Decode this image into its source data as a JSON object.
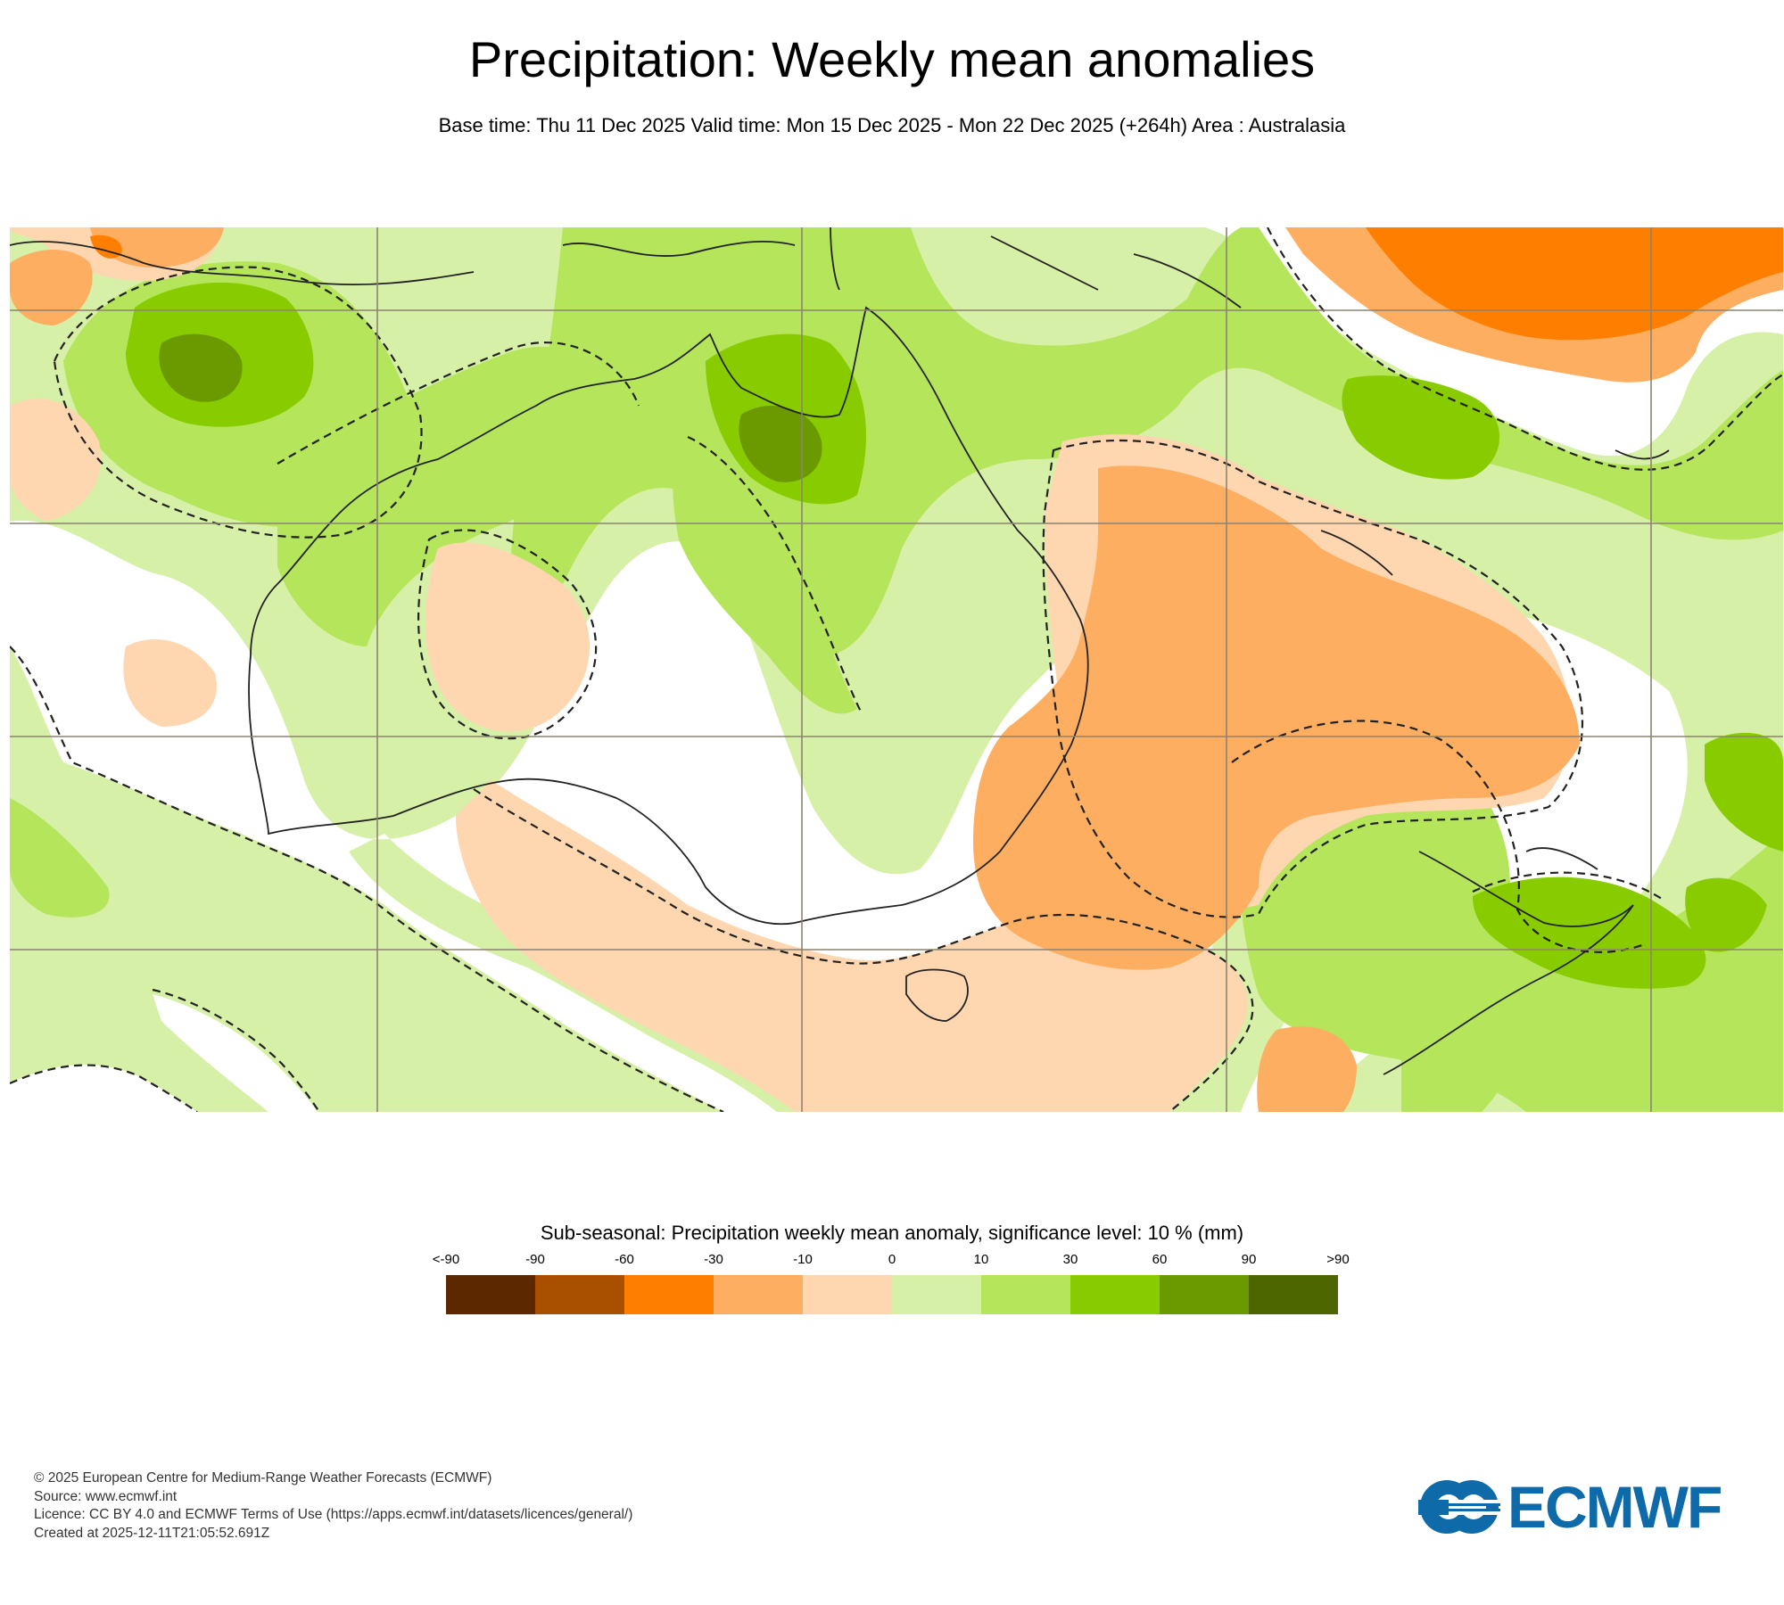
{
  "header": {
    "title": "Precipitation: Weekly mean anomalies",
    "subtitle": "Base time: Thu 11 Dec 2025 Valid time: Mon 15 Dec 2025 - Mon 22 Dec 2025 (+264h) Area : Australasia"
  },
  "legend": {
    "title": "Sub-seasonal: Precipitation weekly mean anomaly, significance level: 10 % (mm)",
    "ticks": [
      "<-90",
      "-90",
      "-60",
      "-30",
      "-10",
      "0",
      "10",
      "30",
      "60",
      "90",
      ">90"
    ],
    "colors": [
      "#5c2800",
      "#a85000",
      "#fe7f00",
      "#feae60",
      "#fed6b0",
      "#d7f0a8",
      "#b4e55a",
      "#88cc00",
      "#6a9900",
      "#4d6600"
    ]
  },
  "map": {
    "area": "Australasia",
    "land_outline_color": "#222222",
    "significance_contour": "dashed",
    "gridline_color": "#8c8370"
  },
  "footer": {
    "lines": [
      "© 2025 European Centre for Medium-Range Weather Forecasts (ECMWF)",
      "Source: www.ecmwf.int",
      "Licence: CC BY 4.0 and ECMWF Terms of Use (https://apps.ecmwf.int/datasets/licences/general/)",
      "Created at 2025-12-11T21:05:52.691Z"
    ]
  },
  "logo": {
    "text": "ECMWF",
    "color": "#0e6aa8",
    "icon": "ecmwf-logo-icon"
  }
}
